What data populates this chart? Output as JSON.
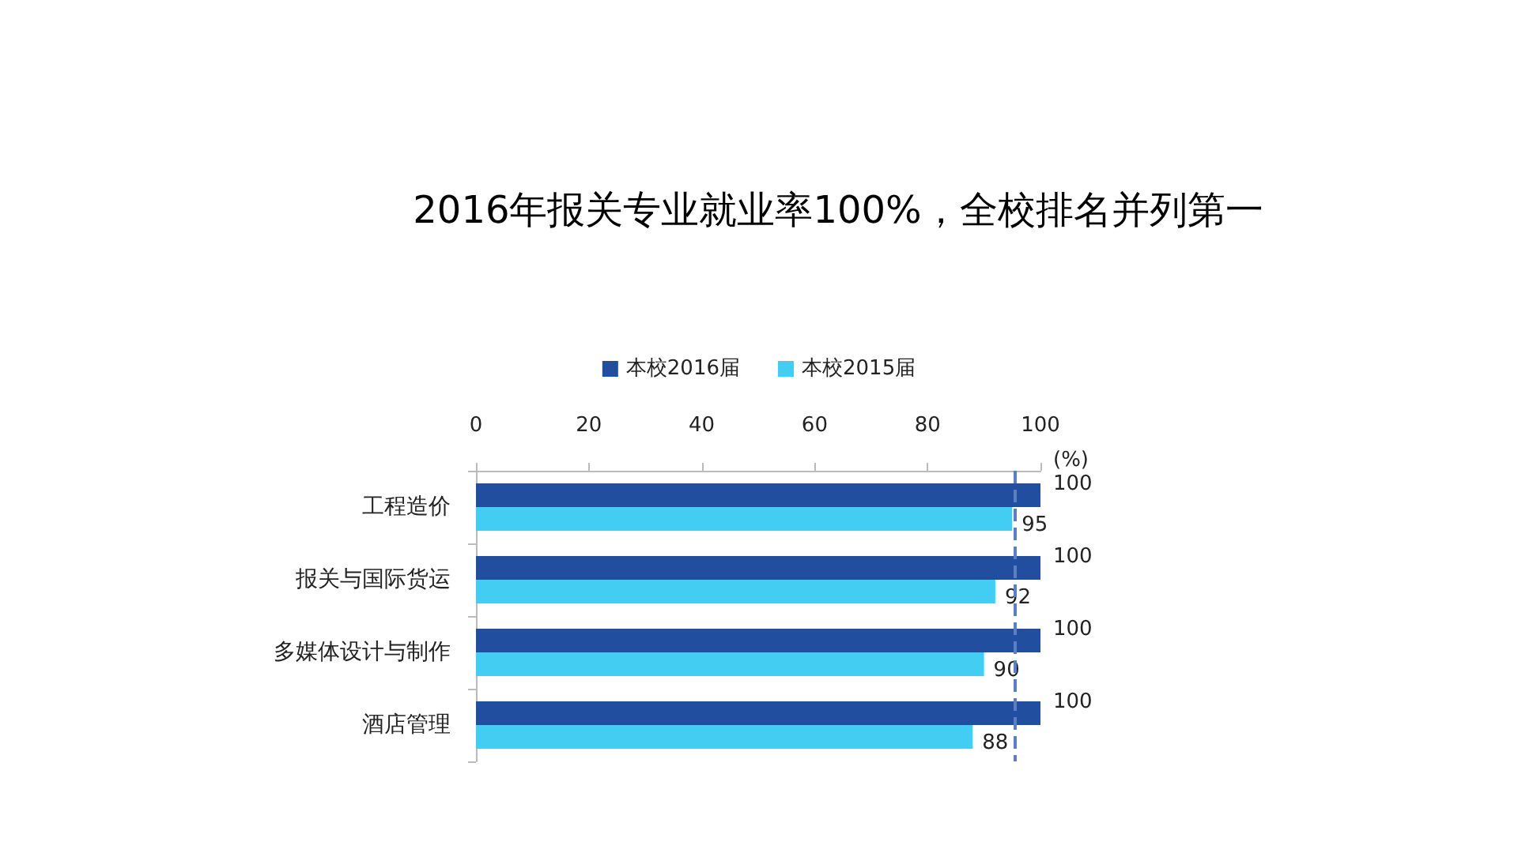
{
  "chart_data": {
    "type": "bar",
    "orientation": "horizontal",
    "title": "2016年报关专业就业率100%，全校排名并列第一",
    "xlabel": "(%)",
    "categories": [
      "工程造价",
      "报关与国际货运",
      "多媒体设计与制作",
      "酒店管理"
    ],
    "series": [
      {
        "name": "本校2016届",
        "color": "#224e9f",
        "values": [
          100,
          100,
          100,
          100
        ]
      },
      {
        "name": "本校2015届",
        "color": "#44cdf2",
        "values": [
          95,
          92,
          90,
          88
        ]
      }
    ],
    "xlim": [
      0,
      100
    ],
    "xticks": [
      0,
      20,
      40,
      60,
      80,
      100
    ],
    "data_labels": true,
    "grid": false,
    "legend": "top",
    "ref_lines": [
      {
        "axis": "x",
        "value": 95.5,
        "label": null,
        "color": "#5b7fc0",
        "line_style": "dashed"
      }
    ]
  }
}
